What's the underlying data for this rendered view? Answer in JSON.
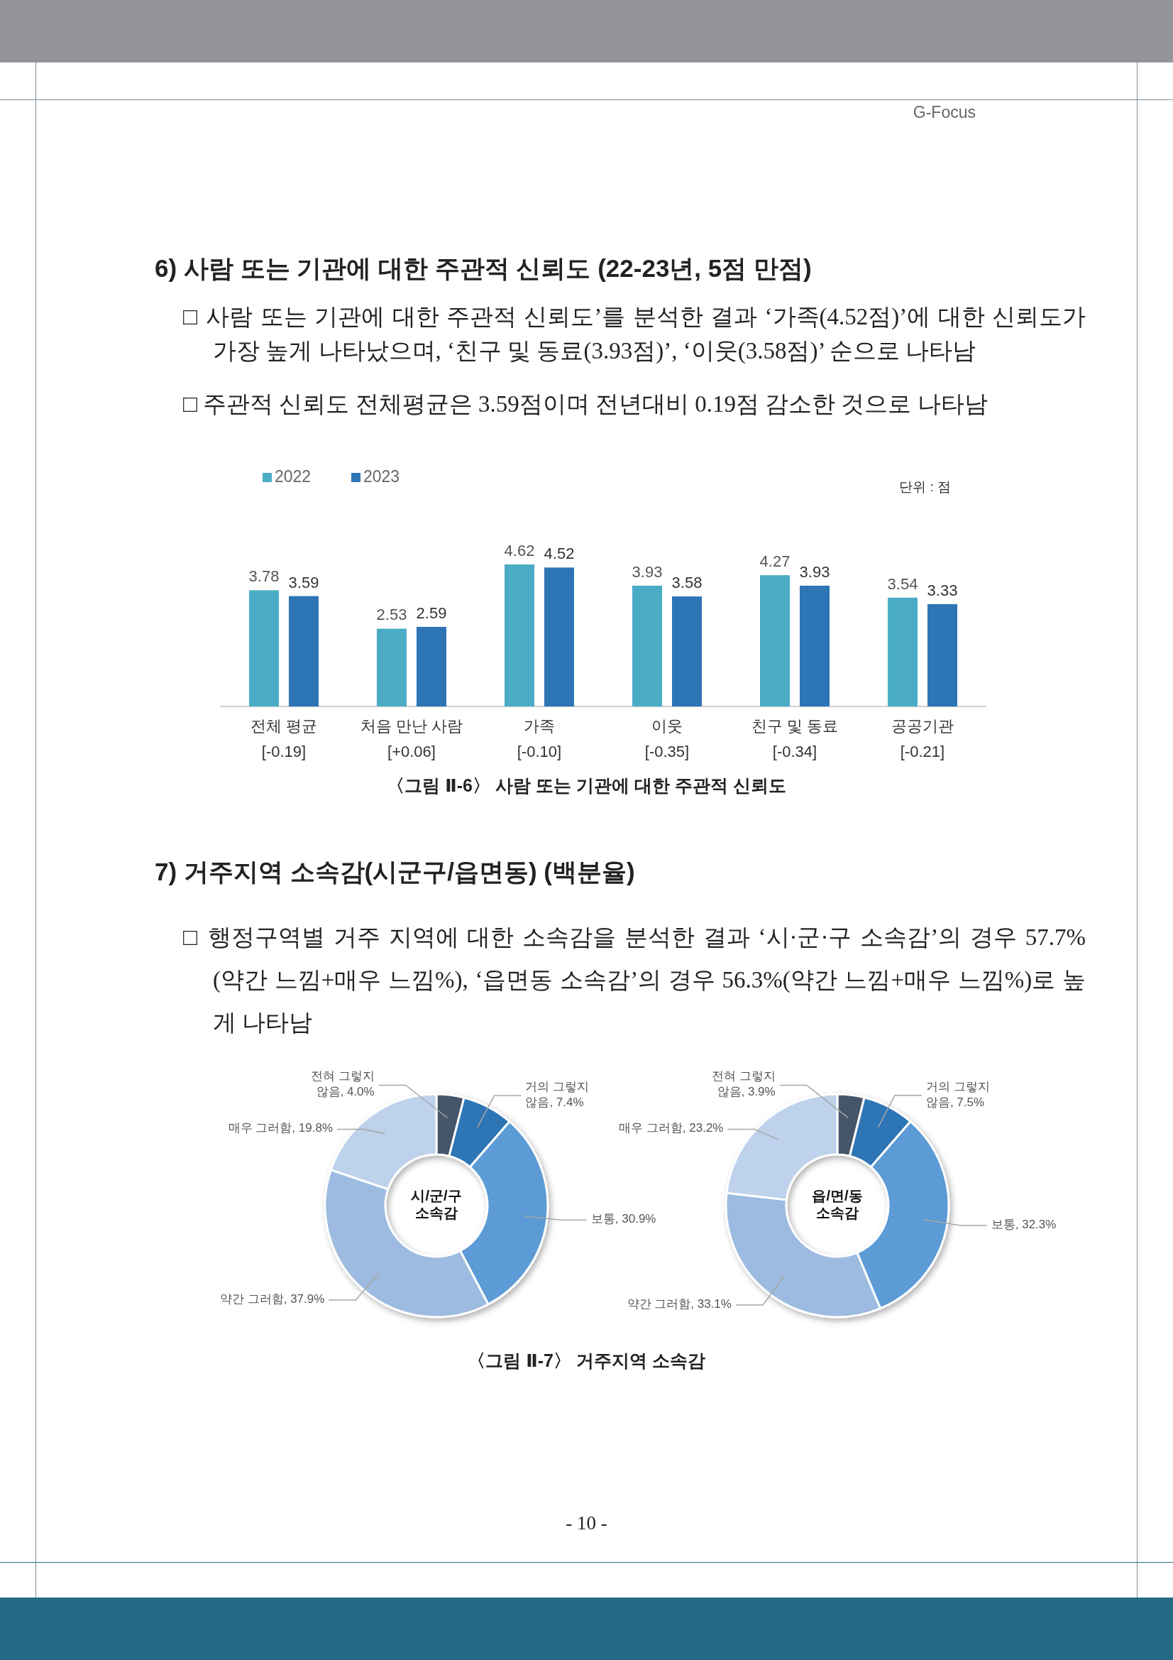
{
  "chart_data": [
    {
      "type": "bar",
      "title": "6) 사람 또는 기관에 대한 주관적 신뢰도 (22-23년, 5점 만점)",
      "categories": [
        "전체 평균\n[-0.19]",
        "처음 만난 사람\n[+0.06]",
        "가족\n[-0.10]",
        "이웃\n[-0.35]",
        "친구 및 동료\n[-0.34]",
        "공공기관\n[-0.21]"
      ],
      "series": [
        {
          "name": "2022",
          "color": "#4bacc6",
          "values": [
            3.78,
            2.53,
            4.62,
            3.93,
            4.27,
            3.54
          ]
        },
        {
          "name": "2023",
          "color": "#2e75b6",
          "values": [
            3.59,
            2.59,
            4.52,
            3.58,
            3.93,
            3.33
          ]
        }
      ],
      "data_labels": true,
      "legend": "top left",
      "annotations": [
        "□ 사람 또는 기관에 대한 주관적 신뢰도’를 분석한 결과 ‘가족(4.52점)’에 대한 신뢰도가 가장 높게 나타났으며, ‘친구 및 동료(3.93점)’, ‘이웃(3.58점)’ 순으로 나타남",
        "□ 주관적 신뢰도 전체평균은 3.59점이며 전년대비 0.19점 감소한 것으로 나타남",
        "단위 : 점",
        "〈그림 Ⅱ-6〉 사람 또는 기관에 대한 주관적 신뢰도"
      ]
    },
    {
      "type": "donut",
      "title": "시/군/구\n소속감",
      "categories": [
        "전혀 그렇지\n않음",
        "거의 그렇지\n않음",
        "보통",
        "약간 그러함",
        "매우 그러함"
      ],
      "values": [
        4.0,
        7.4,
        30.9,
        37.9,
        19.8
      ],
      "value_labels": [
        "4.0%",
        "7.4%",
        "30.9%",
        "37.9%",
        "19.8%"
      ],
      "colors": [
        "#44546a",
        "#2e75b6",
        "#5b9bd5",
        "#9dbbe1",
        "#bed2ec"
      ],
      "annotations": [
        "7) 거주지역 소속감(시군구/읍면동) (백분율)",
        "□ 행정구역별 거주 지역에 대한 소속감을 분석한 결과 ‘시·군·구 소속감’의 경우 57.7%(약간 느낌+매우 느낌%), ‘읍면동 소속감’의 경우 56.3%(약간 느낌+매우 느낌%)로 높게 나타남"
      ]
    },
    {
      "type": "donut",
      "title": "읍/면/동\n소속감",
      "categories": [
        "전혀 그렇지\n않음",
        "거의 그렇지\n않음",
        "보통",
        "약간 그러함",
        "매우 그러함"
      ],
      "values": [
        3.9,
        7.5,
        32.3,
        33.1,
        23.2
      ],
      "value_labels": [
        "3.9%",
        "7.5%",
        "32.3%",
        "33.1%",
        "23.2%"
      ],
      "colors": [
        "#44546a",
        "#2e75b6",
        "#5b9bd5",
        "#9dbbe1",
        "#bed2ec"
      ],
      "annotations": [
        "〈그림 Ⅱ-7〉 거주지역 소속감",
        "- 10 -",
        "G-Focus"
      ]
    }
  ]
}
